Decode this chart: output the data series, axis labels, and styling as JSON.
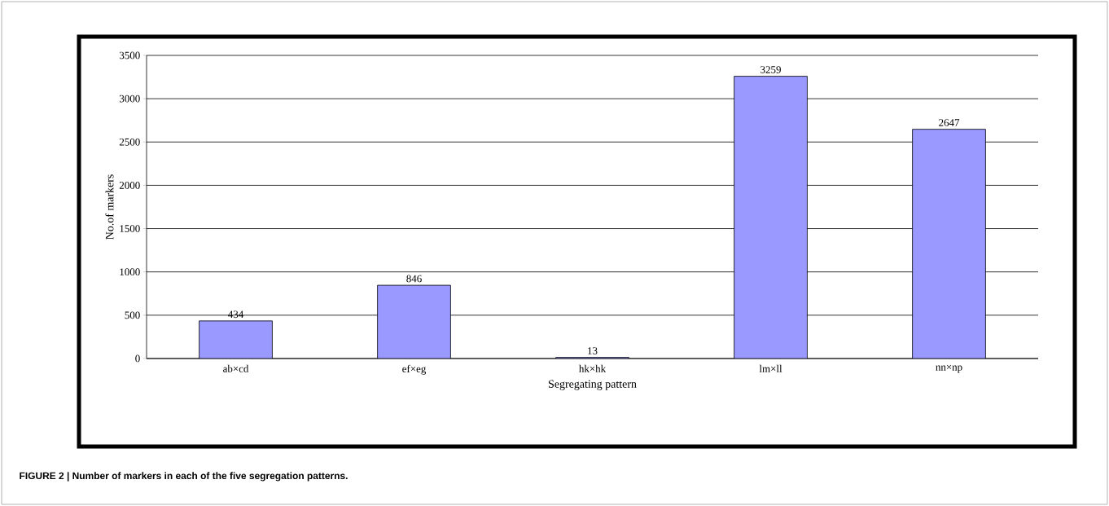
{
  "chart_data": {
    "type": "bar",
    "xlabel": "Segregating pattern",
    "ylabel": "No.of markers",
    "categories": [
      "ab×cd",
      "ef×eg",
      "hk×hk",
      "lm×ll",
      "nn×np"
    ],
    "values": [
      434,
      846,
      13,
      3259,
      2647
    ],
    "color": "#9999ff",
    "ylim": [
      0,
      3500
    ],
    "yticks": [
      0,
      500,
      1000,
      1500,
      2000,
      2500,
      3000,
      3500
    ],
    "grid": "y",
    "data_labels": true,
    "annotations": [
      "**FIGURE 2 | Number of markers in each of the five segregation patterns.**"
    ]
  }
}
